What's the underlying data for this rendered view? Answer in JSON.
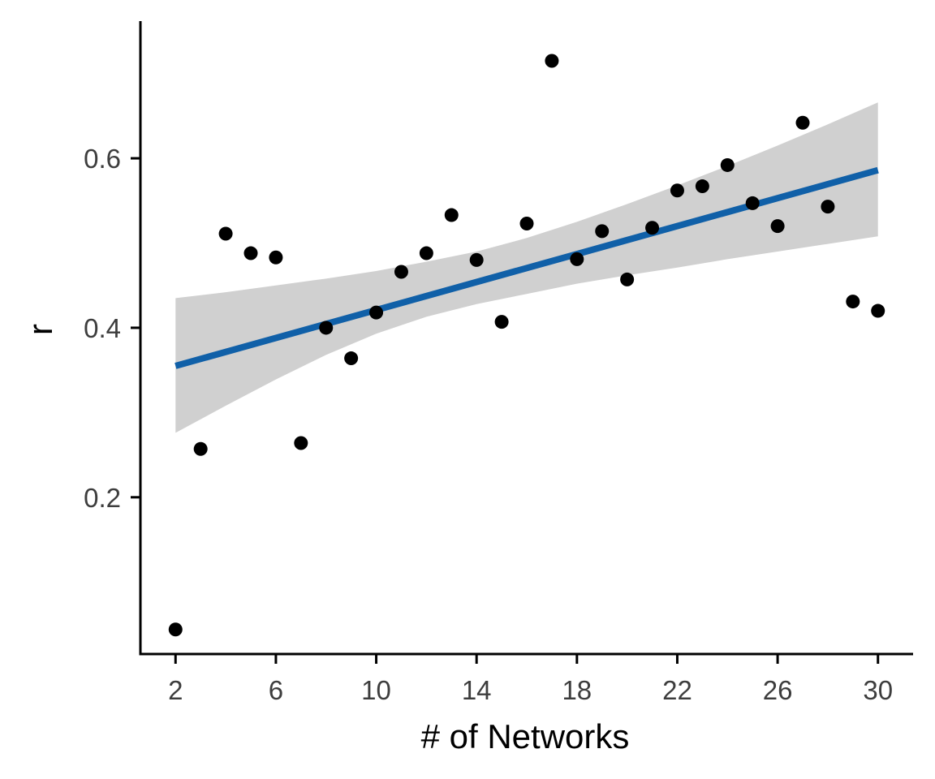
{
  "chart_data": {
    "type": "scatter",
    "title": "",
    "xlabel": "# of Networks",
    "ylabel": "r",
    "xlim": [
      0.6,
      31.4
    ],
    "ylim": [
      0.015,
      0.76
    ],
    "x_ticks": [
      2,
      6,
      10,
      14,
      18,
      22,
      26,
      30
    ],
    "y_ticks": [
      0.2,
      0.4,
      0.6
    ],
    "y_tick_labels": [
      "0.2",
      "0.4",
      "0.6"
    ],
    "grid": false,
    "legend": "none",
    "colors": {
      "points": "#000000",
      "fit_line": "#1060a8",
      "ci_band": "#d0d0d0",
      "axis": "#000000",
      "tick_text": "#3d3d3d"
    },
    "points": {
      "x": [
        2,
        3,
        4,
        5,
        6,
        7,
        8,
        9,
        10,
        11,
        12,
        13,
        14,
        15,
        16,
        17,
        18,
        19,
        20,
        21,
        22,
        23,
        24,
        25,
        26,
        27,
        28,
        29,
        30
      ],
      "y": [
        0.044,
        0.257,
        0.511,
        0.488,
        0.483,
        0.264,
        0.4,
        0.364,
        0.418,
        0.466,
        0.488,
        0.533,
        0.48,
        0.407,
        0.523,
        0.715,
        0.481,
        0.514,
        0.457,
        0.518,
        0.562,
        0.567,
        0.592,
        0.547,
        0.52,
        0.642,
        0.543,
        0.431,
        0.42
      ]
    },
    "fit_line": {
      "x": [
        2,
        30
      ],
      "y": [
        0.355,
        0.586
      ]
    },
    "ci_band": {
      "x": [
        2,
        4,
        6,
        8,
        10,
        12,
        14,
        16,
        18,
        20,
        22,
        24,
        26,
        28,
        30
      ],
      "lower": [
        0.276,
        0.308,
        0.339,
        0.368,
        0.393,
        0.413,
        0.428,
        0.44,
        0.452,
        0.462,
        0.471,
        0.481,
        0.49,
        0.499,
        0.508
      ],
      "upper": [
        0.435,
        0.442,
        0.45,
        0.458,
        0.467,
        0.478,
        0.49,
        0.506,
        0.525,
        0.546,
        0.568,
        0.591,
        0.615,
        0.64,
        0.666
      ]
    }
  }
}
